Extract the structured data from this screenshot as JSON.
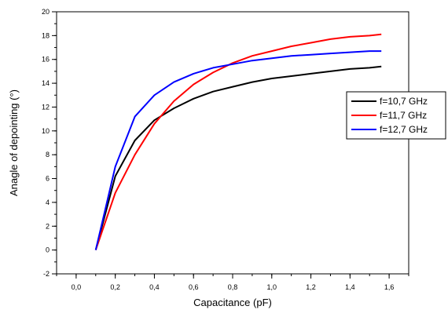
{
  "chart_data": {
    "type": "line",
    "xlabel": "Capacitance (pF)",
    "ylabel": "Anagle of depointing (°)",
    "xlim": [
      -0.1,
      1.7
    ],
    "ylim": [
      -2,
      20
    ],
    "x_ticks": [
      0.0,
      0.2,
      0.4,
      0.6,
      0.8,
      1.0,
      1.2,
      1.4,
      1.6
    ],
    "x_tick_labels": [
      "0,0",
      "0,2",
      "0,4",
      "0,6",
      "0,8",
      "1,0",
      "1,2",
      "1,4",
      "1,6"
    ],
    "y_ticks": [
      -2,
      0,
      2,
      4,
      6,
      8,
      10,
      12,
      14,
      16,
      18,
      20
    ],
    "y_tick_labels": [
      "-2",
      "0",
      "2",
      "4",
      "6",
      "8",
      "10",
      "12",
      "14",
      "16",
      "18",
      "20"
    ],
    "grid": false,
    "legend_position": "right",
    "series": [
      {
        "name": "f=10,7 GHz",
        "color": "#000000",
        "x": [
          0.1,
          0.2,
          0.3,
          0.4,
          0.5,
          0.6,
          0.7,
          0.8,
          0.9,
          1.0,
          1.1,
          1.2,
          1.3,
          1.4,
          1.5,
          1.56
        ],
        "y": [
          0.0,
          6.2,
          9.2,
          10.9,
          11.9,
          12.7,
          13.3,
          13.7,
          14.1,
          14.4,
          14.6,
          14.8,
          15.0,
          15.2,
          15.3,
          15.4
        ]
      },
      {
        "name": "f=11,7 GHz",
        "color": "#ff0000",
        "x": [
          0.1,
          0.2,
          0.3,
          0.4,
          0.5,
          0.6,
          0.7,
          0.8,
          0.9,
          1.0,
          1.1,
          1.2,
          1.3,
          1.4,
          1.5,
          1.56
        ],
        "y": [
          0.0,
          4.8,
          8.0,
          10.6,
          12.5,
          13.9,
          14.9,
          15.7,
          16.3,
          16.7,
          17.1,
          17.4,
          17.7,
          17.9,
          18.0,
          18.1
        ]
      },
      {
        "name": "f=12,7 GHz",
        "color": "#0000ff",
        "x": [
          0.1,
          0.2,
          0.3,
          0.4,
          0.5,
          0.6,
          0.7,
          0.8,
          0.9,
          1.0,
          1.1,
          1.2,
          1.3,
          1.4,
          1.5,
          1.56
        ],
        "y": [
          0.0,
          7.0,
          11.2,
          13.0,
          14.1,
          14.8,
          15.3,
          15.6,
          15.9,
          16.1,
          16.3,
          16.4,
          16.5,
          16.6,
          16.7,
          16.7
        ]
      }
    ]
  }
}
